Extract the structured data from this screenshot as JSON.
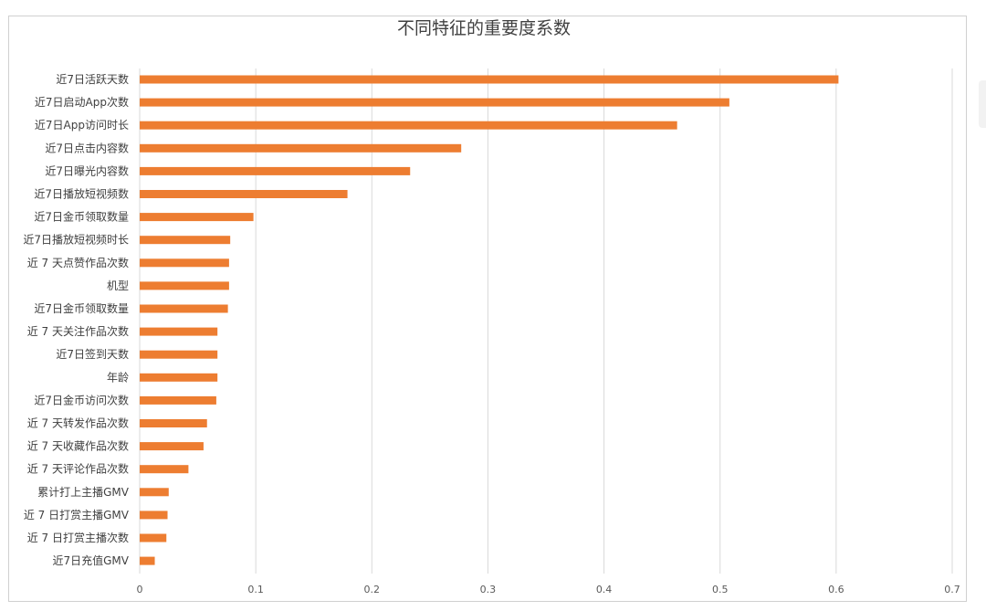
{
  "chart_data": {
    "type": "bar",
    "orientation": "horizontal",
    "title": "不同特征的重要度系数",
    "xlabel": "",
    "ylabel": "",
    "xlim": [
      0,
      0.7
    ],
    "ticks": [
      "0",
      "0.1",
      "0.2",
      "0.3",
      "0.4",
      "0.5",
      "0.6",
      "0.7"
    ],
    "tick_values": [
      0,
      0.1,
      0.2,
      0.3,
      0.4,
      0.5,
      0.6,
      0.7
    ],
    "grid": true,
    "legend": "none",
    "bar_color": "#ed7d31",
    "categories": [
      "近7日活跃天数",
      "近7日启动App次数",
      "近7日App访问时长",
      "近7日点击内容数",
      "近7日曝光内容数",
      "近7日播放短视频数",
      "近7日金币领取数量",
      "近7日播放短视频时长",
      "近 7 天点赞作品次数",
      "机型",
      "近7日金币领取数量",
      "近 7 天关注作品次数",
      "近7日签到天数",
      "年龄",
      "近7日金币访问次数",
      "近 7 天转发作品次数",
      "近 7 天收藏作品次数",
      "近 7 天评论作品次数",
      "累计打上主播GMV",
      "近 7 日打赏主播GMV",
      "近 7 日打赏主播次数",
      "近7日充值GMV"
    ],
    "values": [
      0.602,
      0.508,
      0.463,
      0.277,
      0.233,
      0.179,
      0.098,
      0.078,
      0.077,
      0.077,
      0.076,
      0.067,
      0.067,
      0.067,
      0.066,
      0.058,
      0.055,
      0.042,
      0.025,
      0.024,
      0.023,
      0.013
    ]
  }
}
